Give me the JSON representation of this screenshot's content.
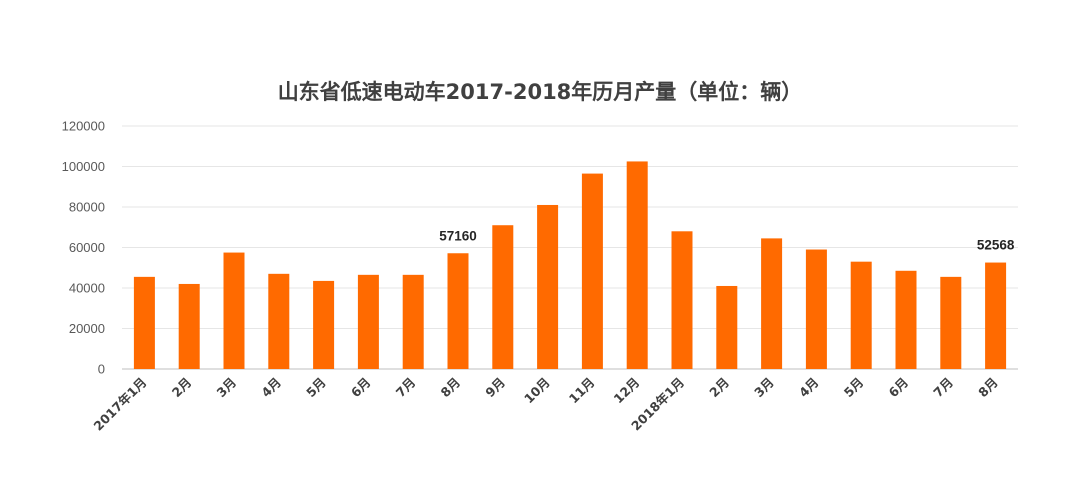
{
  "chart_data": {
    "type": "bar",
    "title": "山东省低速电动车2017-2018年历月产量（单位：辆）",
    "categories": [
      "2017年1月",
      "2月",
      "3月",
      "4月",
      "5月",
      "6月",
      "7月",
      "8月",
      "9月",
      "10月",
      "11月",
      "12月",
      "2018年1月",
      "2月",
      "3月",
      "4月",
      "5月",
      "6月",
      "7月",
      "8月"
    ],
    "values": [
      45500,
      42000,
      57500,
      47000,
      43500,
      46500,
      46500,
      57160,
      71000,
      81000,
      96500,
      102500,
      68000,
      41000,
      64500,
      59000,
      53000,
      48500,
      45500,
      52568
    ],
    "data_labels": [
      {
        "index": 7,
        "text": "57160"
      },
      {
        "index": 19,
        "text": "52568"
      }
    ],
    "ylim": [
      0,
      120000
    ],
    "yticks": [
      "0",
      "20000",
      "40000",
      "60000",
      "80000",
      "100000",
      "120000"
    ],
    "xlabel": "",
    "ylabel": "",
    "grid": true,
    "bar_color": "#ff6a00"
  }
}
